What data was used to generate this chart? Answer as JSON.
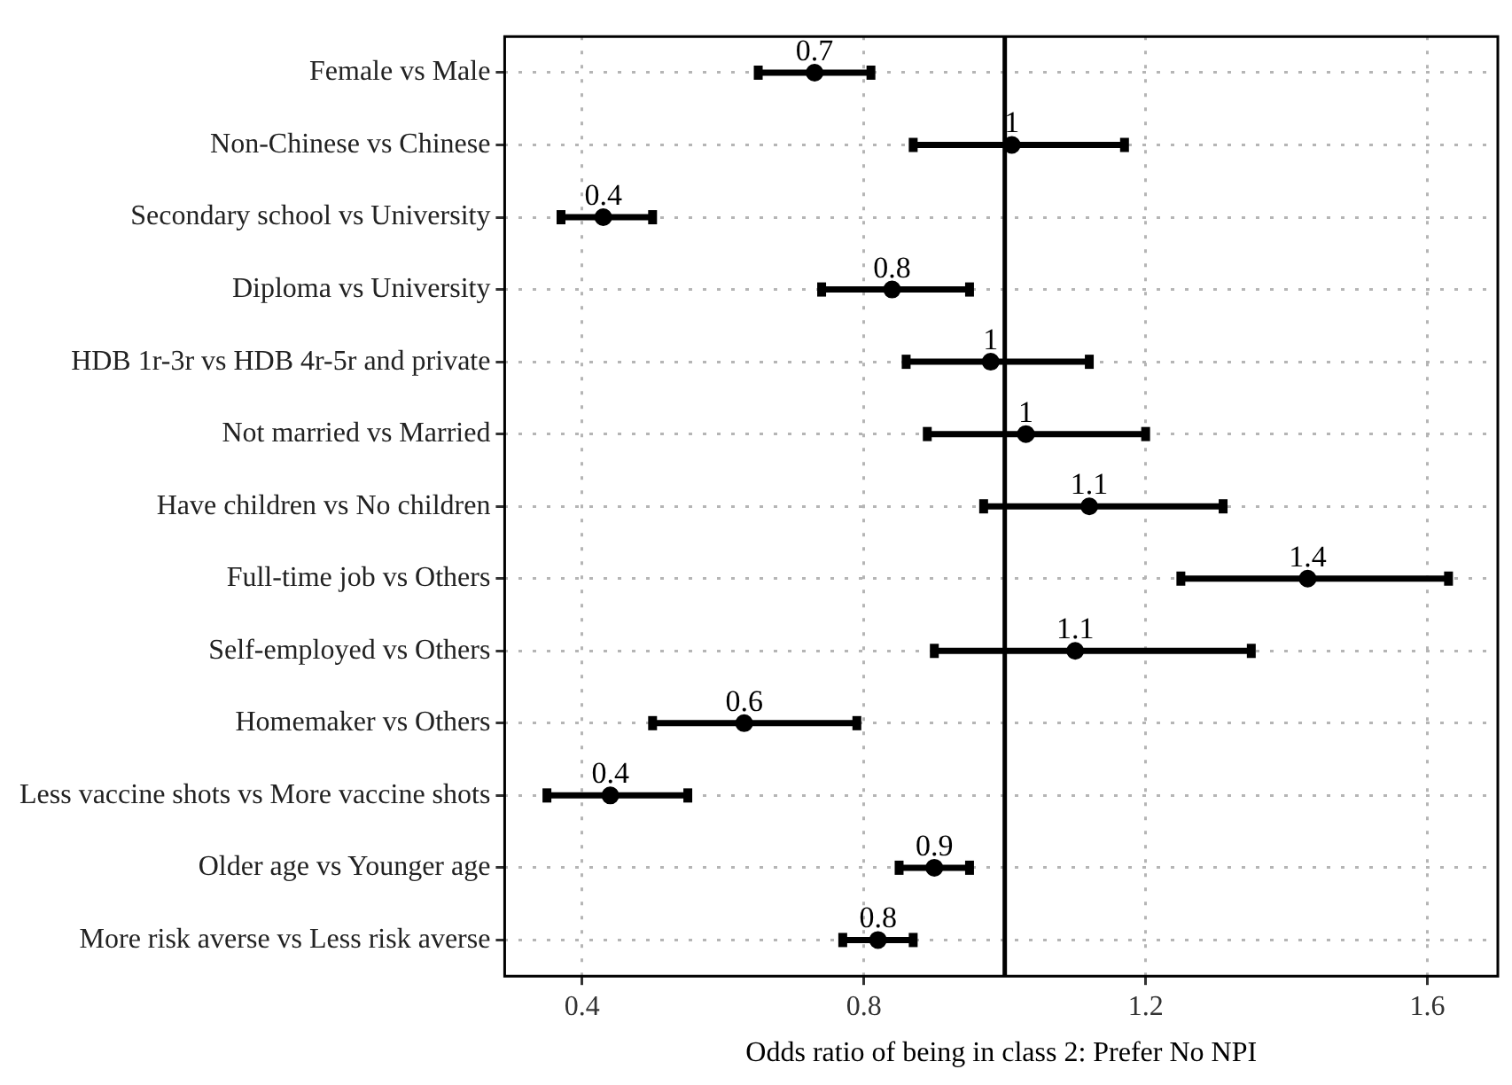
{
  "chart_data": {
    "type": "scatter",
    "orientation": "horizontal",
    "xlabel": "Odds ratio of being in class 2: Prefer No NPI",
    "categories": [
      "Female vs Male",
      "Non-Chinese vs Chinese",
      "Secondary school vs University",
      "Diploma vs University",
      "HDB 1r-3r vs HDB 4r-5r and private",
      "Not married vs Married",
      "Have children vs No children",
      "Full-time job vs Others",
      "Self-employed vs Others",
      "Homemaker vs Others",
      "Less vaccine shots vs More vaccine shots",
      "Older age vs Younger age",
      "More risk averse vs Less risk averse"
    ],
    "values": [
      0.73,
      1.01,
      0.43,
      0.84,
      0.98,
      1.03,
      1.12,
      1.43,
      1.1,
      0.63,
      0.44,
      0.9,
      0.82
    ],
    "errors": [
      [
        0.65,
        0.81
      ],
      [
        0.87,
        1.17
      ],
      [
        0.37,
        0.5
      ],
      [
        0.74,
        0.95
      ],
      [
        0.86,
        1.12
      ],
      [
        0.89,
        1.2
      ],
      [
        0.97,
        1.31
      ],
      [
        1.25,
        1.63
      ],
      [
        0.9,
        1.35
      ],
      [
        0.5,
        0.79
      ],
      [
        0.35,
        0.55
      ],
      [
        0.85,
        0.95
      ],
      [
        0.77,
        0.87
      ]
    ],
    "value_labels": [
      "0.7",
      "1",
      "0.4",
      "0.8",
      "1",
      "1",
      "1.1",
      "1.4",
      "1.1",
      "0.6",
      "0.4",
      "0.9",
      "0.8"
    ],
    "color": "#000000",
    "marker": "circle",
    "xlim": [
      0.29,
      1.7
    ],
    "xticks": [
      0.4,
      0.8,
      1.2,
      1.6
    ],
    "grid": true,
    "legend": false,
    "ref_lines": [
      {
        "axis": "x",
        "value": 1,
        "color": "#000000"
      }
    ]
  }
}
